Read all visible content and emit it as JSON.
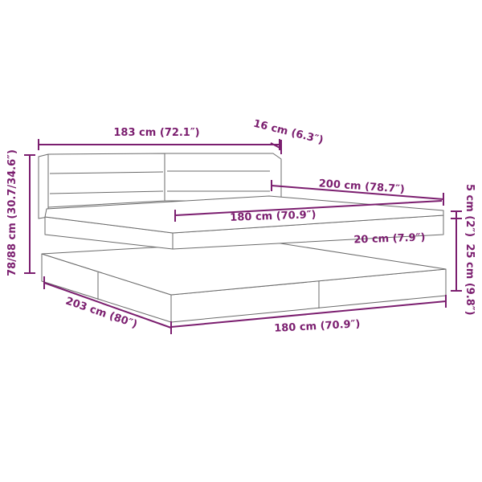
{
  "accent_color": "#7b1e6f",
  "dimensions": {
    "headboard_width": "183 cm (72.1″)",
    "headboard_depth": "16 cm (6.3″)",
    "total_height": "78/88 cm (30.7/34.6″)",
    "mattress_length": "200 cm (78.7″)",
    "mattress_width": "180 cm (70.9″)",
    "topper_height": "5 cm (2″)",
    "mattress_height": "20 cm (7.9″)",
    "base_height": "25 cm (9.8″)",
    "total_length": "203 cm (80″)",
    "base_width": "180 cm (70.9″)"
  }
}
